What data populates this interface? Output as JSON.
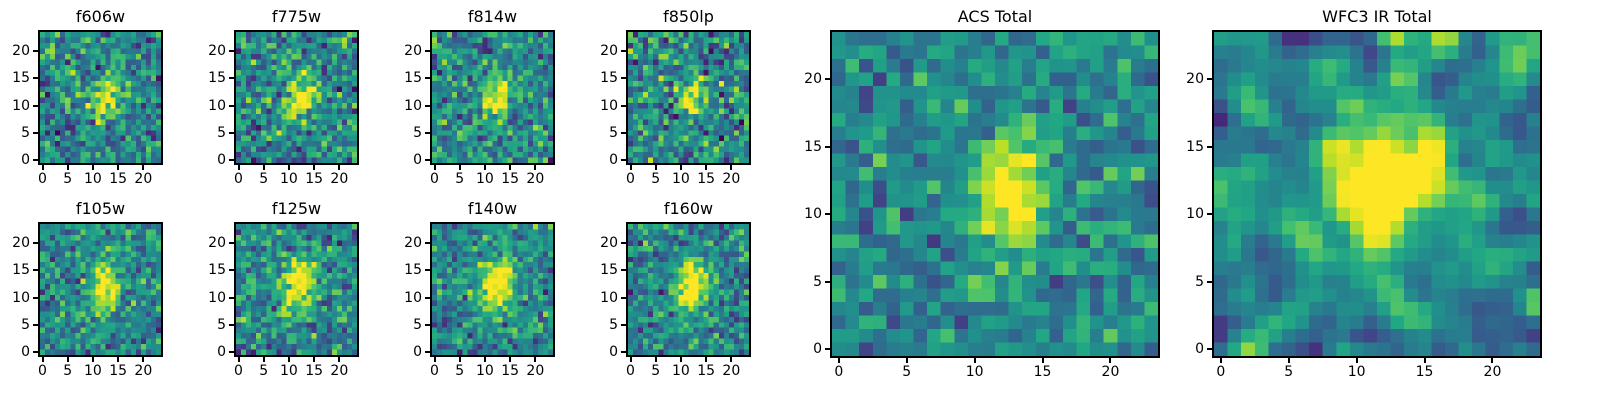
{
  "figure": {
    "background": "#ffffff",
    "description": "Grid of astronomical image cutouts in HST filters plus ACS and WFC3 IR stacked totals, viridis colormap"
  },
  "style": {
    "spine_color": "#000000",
    "tick_color": "#000000",
    "colormap_name": "viridis",
    "viridis_stops": [
      "#440154",
      "#482475",
      "#414487",
      "#345f8d",
      "#2a788e",
      "#21918c",
      "#22a884",
      "#44bf70",
      "#7ad151",
      "#bddf26",
      "#fde725"
    ]
  },
  "chart_data": [
    {
      "type": "heatmap",
      "title": "f606w",
      "colormap": "viridis",
      "grid_size": [
        24,
        24
      ],
      "x_range": [
        -0.5,
        23.5
      ],
      "y_range": [
        -0.5,
        23.5
      ],
      "x_ticks": [
        0,
        5,
        10,
        15,
        20
      ],
      "y_ticks": [
        0,
        5,
        10,
        15,
        20
      ],
      "source": {
        "cx": 12.4,
        "cy": 11.2,
        "sigma_x": 1.7,
        "sigma_y": 2.7,
        "angle_deg": -15,
        "amplitude": 0.55
      },
      "background_level": 0.47,
      "noise_level": 0.17,
      "smooth_passes": 0,
      "seed": 11
    },
    {
      "type": "heatmap",
      "title": "f775w",
      "colormap": "viridis",
      "grid_size": [
        24,
        24
      ],
      "x_range": [
        -0.5,
        23.5
      ],
      "y_range": [
        -0.5,
        23.5
      ],
      "x_ticks": [
        0,
        5,
        10,
        15,
        20
      ],
      "y_ticks": [
        0,
        5,
        10,
        15,
        20
      ],
      "source": {
        "cx": 12.2,
        "cy": 11.6,
        "sigma_x": 1.8,
        "sigma_y": 2.9,
        "angle_deg": -15,
        "amplitude": 0.58
      },
      "background_level": 0.47,
      "noise_level": 0.17,
      "smooth_passes": 0,
      "seed": 22
    },
    {
      "type": "heatmap",
      "title": "f814w",
      "colormap": "viridis",
      "grid_size": [
        24,
        24
      ],
      "x_range": [
        -0.5,
        23.5
      ],
      "y_range": [
        -0.5,
        23.5
      ],
      "x_ticks": [
        0,
        5,
        10,
        15,
        20
      ],
      "y_ticks": [
        0,
        5,
        10,
        15,
        20
      ],
      "source": {
        "cx": 12.3,
        "cy": 11.8,
        "sigma_x": 1.8,
        "sigma_y": 3.0,
        "angle_deg": -14,
        "amplitude": 0.6
      },
      "background_level": 0.47,
      "noise_level": 0.16,
      "smooth_passes": 0,
      "seed": 33
    },
    {
      "type": "heatmap",
      "title": "f850lp",
      "colormap": "viridis",
      "grid_size": [
        24,
        24
      ],
      "x_range": [
        -0.5,
        23.5
      ],
      "y_range": [
        -0.5,
        23.5
      ],
      "x_ticks": [
        0,
        5,
        10,
        15,
        20
      ],
      "y_ticks": [
        0,
        5,
        10,
        15,
        20
      ],
      "source": {
        "cx": 12.1,
        "cy": 11.4,
        "sigma_x": 1.7,
        "sigma_y": 2.7,
        "angle_deg": -15,
        "amplitude": 0.55
      },
      "background_level": 0.47,
      "noise_level": 0.2,
      "smooth_passes": 0,
      "seed": 44
    },
    {
      "type": "heatmap",
      "title": "f105w",
      "colormap": "viridis",
      "grid_size": [
        24,
        24
      ],
      "x_range": [
        -0.5,
        23.5
      ],
      "y_range": [
        -0.5,
        23.5
      ],
      "x_ticks": [
        0,
        5,
        10,
        15,
        20
      ],
      "y_ticks": [
        0,
        5,
        10,
        15,
        20
      ],
      "source": {
        "cx": 12.2,
        "cy": 12.2,
        "sigma_x": 2.0,
        "sigma_y": 3.2,
        "angle_deg": -14,
        "amplitude": 0.62
      },
      "background_level": 0.47,
      "noise_level": 0.15,
      "smooth_passes": 0,
      "seed": 55
    },
    {
      "type": "heatmap",
      "title": "f125w",
      "colormap": "viridis",
      "grid_size": [
        24,
        24
      ],
      "x_range": [
        -0.5,
        23.5
      ],
      "y_range": [
        -0.5,
        23.5
      ],
      "x_ticks": [
        0,
        5,
        10,
        15,
        20
      ],
      "y_ticks": [
        0,
        5,
        10,
        15,
        20
      ],
      "source": {
        "cx": 12.0,
        "cy": 12.3,
        "sigma_x": 2.3,
        "sigma_y": 3.5,
        "angle_deg": -14,
        "amplitude": 0.66
      },
      "background_level": 0.47,
      "noise_level": 0.16,
      "smooth_passes": 0,
      "seed": 66
    },
    {
      "type": "heatmap",
      "title": "f140w",
      "colormap": "viridis",
      "grid_size": [
        24,
        24
      ],
      "x_range": [
        -0.5,
        23.5
      ],
      "y_range": [
        -0.5,
        23.5
      ],
      "x_ticks": [
        0,
        5,
        10,
        15,
        20
      ],
      "y_ticks": [
        0,
        5,
        10,
        15,
        20
      ],
      "source": {
        "cx": 12.1,
        "cy": 12.4,
        "sigma_x": 2.2,
        "sigma_y": 3.4,
        "angle_deg": -13,
        "amplitude": 0.7
      },
      "background_level": 0.46,
      "noise_level": 0.15,
      "smooth_passes": 0,
      "seed": 77
    },
    {
      "type": "heatmap",
      "title": "f160w",
      "colormap": "viridis",
      "grid_size": [
        24,
        24
      ],
      "x_range": [
        -0.5,
        23.5
      ],
      "y_range": [
        -0.5,
        23.5
      ],
      "x_ticks": [
        0,
        5,
        10,
        15,
        20
      ],
      "y_ticks": [
        0,
        5,
        10,
        15,
        20
      ],
      "source": {
        "cx": 12.2,
        "cy": 12.2,
        "sigma_x": 2.2,
        "sigma_y": 3.1,
        "angle_deg": -14,
        "amplitude": 0.7
      },
      "background_level": 0.46,
      "noise_level": 0.15,
      "smooth_passes": 0,
      "seed": 88
    },
    {
      "type": "heatmap",
      "title": "ACS Total",
      "colormap": "viridis",
      "grid_size": [
        24,
        24
      ],
      "x_range": [
        -0.5,
        23.5
      ],
      "y_range": [
        -0.5,
        23.5
      ],
      "x_ticks": [
        0,
        5,
        10,
        15,
        20
      ],
      "y_ticks": [
        0,
        5,
        10,
        15,
        20
      ],
      "source": {
        "cx": 12.5,
        "cy": 11.4,
        "sigma_x": 1.9,
        "sigma_y": 3.4,
        "angle_deg": -14,
        "amplitude": 0.6
      },
      "background_level": 0.46,
      "noise_level": 0.13,
      "smooth_passes": 0,
      "seed": 99
    },
    {
      "type": "heatmap",
      "title": "WFC3 IR Total",
      "colormap": "viridis",
      "grid_size": [
        24,
        24
      ],
      "x_range": [
        -0.5,
        23.5
      ],
      "y_range": [
        -0.5,
        23.5
      ],
      "x_ticks": [
        0,
        5,
        10,
        15,
        20
      ],
      "y_ticks": [
        0,
        5,
        10,
        15,
        20
      ],
      "source": {
        "cx": 12.3,
        "cy": 12.4,
        "sigma_x": 2.6,
        "sigma_y": 3.9,
        "angle_deg": -13,
        "amplitude": 0.9
      },
      "background_level": 0.45,
      "noise_level": 0.34,
      "smooth_passes": 1,
      "seed": 123
    }
  ]
}
